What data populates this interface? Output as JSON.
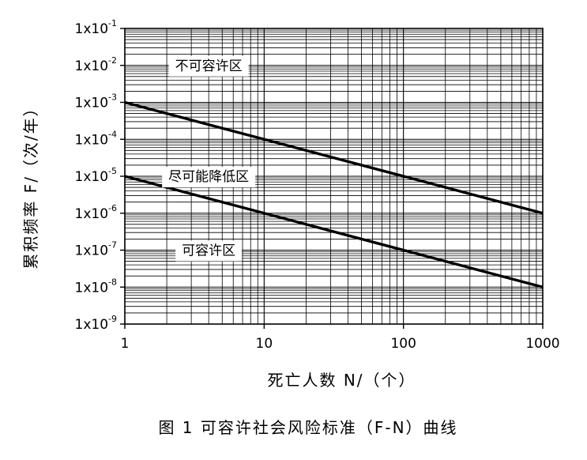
{
  "chart_data": {
    "type": "line",
    "title": "",
    "caption": "图 1  可容许社会风险标准（F-N）曲线",
    "xlabel": "死亡人数  N/（个）",
    "ylabel": "累积频率 F/（次/年）",
    "x_scale": "log",
    "y_scale": "log",
    "xlim": [
      1,
      1000
    ],
    "ylim": [
      1e-09,
      0.1
    ],
    "grid": true,
    "x_ticks": [
      "1",
      "10",
      "100",
      "1000"
    ],
    "y_ticks": [
      {
        "base": "1x10",
        "exp": "-9"
      },
      {
        "base": "1x10",
        "exp": "-8"
      },
      {
        "base": "1x10",
        "exp": "-7"
      },
      {
        "base": "1x10",
        "exp": "-6"
      },
      {
        "base": "1x10",
        "exp": "-5"
      },
      {
        "base": "1x10",
        "exp": "-4"
      },
      {
        "base": "1x10",
        "exp": "-3"
      },
      {
        "base": "1x10",
        "exp": "-2"
      },
      {
        "base": "1x10",
        "exp": "-1"
      }
    ],
    "series": [
      {
        "x": [
          1,
          1000
        ],
        "y": [
          0.001,
          1e-06
        ]
      },
      {
        "x": [
          1,
          1000
        ],
        "y": [
          1e-05,
          1e-08
        ]
      }
    ],
    "regions": [
      {
        "label": "不可容许区",
        "x": 4,
        "y": 0.01
      },
      {
        "label": "尽可能降低区",
        "x": 4,
        "y": 1e-05
      },
      {
        "label": "可容许区",
        "x": 4,
        "y": 1e-07
      }
    ],
    "colors": {
      "line": "#000000",
      "grid": "#000000",
      "background": "#ffffff"
    }
  }
}
